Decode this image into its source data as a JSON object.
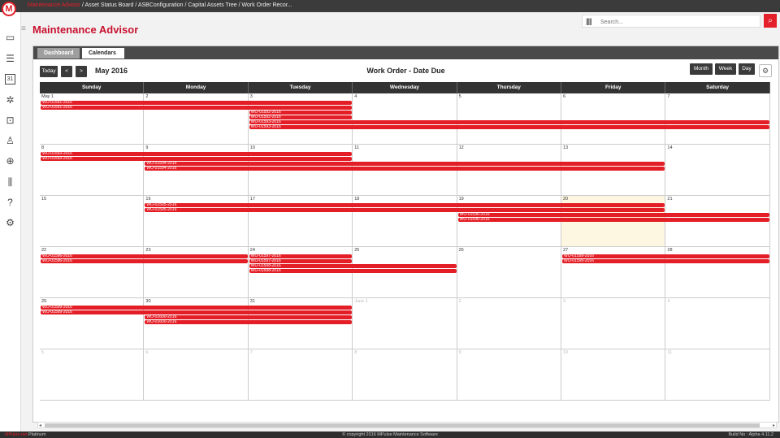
{
  "breadcrumb": {
    "items": [
      "Maintenance Advisor",
      "Asset Status Board",
      "ASBConfiguration",
      "Capital Assets Tree",
      "Work Order Recor..."
    ]
  },
  "app": {
    "title": "Maintenance Advisor",
    "logo_letter": "M"
  },
  "search": {
    "placeholder": "Search..."
  },
  "sidebar": {
    "icons": [
      "monitor-icon",
      "list-icon",
      "calendar-icon",
      "asset-wheel-icon",
      "vehicle-icon",
      "technician-icon",
      "lock-icon",
      "inventory-icon",
      "help-icon",
      "settings-icon"
    ],
    "calendar_day": "31"
  },
  "tabs": [
    {
      "label": "Dashboard",
      "active": false
    },
    {
      "label": "Calendars",
      "active": true
    }
  ],
  "toolbar": {
    "today": "Today",
    "prev": "<",
    "next": ">",
    "month_label": "May 2016",
    "title": "Work Order - Date Due",
    "views": [
      "Month",
      "Week",
      "Day"
    ]
  },
  "calendar": {
    "weekdays": [
      "Sunday",
      "Monday",
      "Tuesday",
      "Wednesday",
      "Thursday",
      "Friday",
      "Saturday"
    ],
    "today_index": 19,
    "days": [
      {
        "n": "May 1"
      },
      {
        "n": "2"
      },
      {
        "n": "3"
      },
      {
        "n": "4"
      },
      {
        "n": "5"
      },
      {
        "n": "6"
      },
      {
        "n": "7"
      },
      {
        "n": "8"
      },
      {
        "n": "9"
      },
      {
        "n": "10"
      },
      {
        "n": "11"
      },
      {
        "n": "12"
      },
      {
        "n": "13"
      },
      {
        "n": "14"
      },
      {
        "n": "15"
      },
      {
        "n": "16"
      },
      {
        "n": "17"
      },
      {
        "n": "18"
      },
      {
        "n": "19"
      },
      {
        "n": "20"
      },
      {
        "n": "21"
      },
      {
        "n": "22"
      },
      {
        "n": "23"
      },
      {
        "n": "24"
      },
      {
        "n": "25"
      },
      {
        "n": "26"
      },
      {
        "n": "27"
      },
      {
        "n": "28"
      },
      {
        "n": "29"
      },
      {
        "n": "30"
      },
      {
        "n": "31"
      },
      {
        "n": "June 1",
        "o": true
      },
      {
        "n": "2",
        "o": true
      },
      {
        "n": "3",
        "o": true
      },
      {
        "n": "4",
        "o": true
      },
      {
        "n": "5",
        "o": true
      },
      {
        "n": "6",
        "o": true
      },
      {
        "n": "7",
        "o": true
      },
      {
        "n": "8",
        "o": true
      },
      {
        "n": "9",
        "o": true
      },
      {
        "n": "10",
        "o": true
      },
      {
        "n": "11",
        "o": true
      }
    ],
    "events": [
      {
        "label": "WO-01591-2016",
        "week": 0,
        "start": 0,
        "end": 2,
        "slot": 0
      },
      {
        "label": "WO-01591-2016",
        "week": 0,
        "start": 0,
        "end": 2,
        "slot": 1
      },
      {
        "label": "WO-01592-2016",
        "week": 0,
        "start": 2,
        "end": 2,
        "slot": 2
      },
      {
        "label": "WO-01592-2016",
        "week": 0,
        "start": 2,
        "end": 2,
        "slot": 3
      },
      {
        "label": "WO-01593-2016",
        "week": 0,
        "start": 2,
        "end": 6,
        "slot": 4
      },
      {
        "label": "WO-01593-2016",
        "week": 0,
        "start": 2,
        "end": 6,
        "slot": 5
      },
      {
        "label": "WO-01593-2016",
        "week": 1,
        "start": 0,
        "end": 2,
        "slot": 0
      },
      {
        "label": "WO-01593-2016",
        "week": 1,
        "start": 0,
        "end": 2,
        "slot": 1
      },
      {
        "label": "WO-01594-2016",
        "week": 1,
        "start": 1,
        "end": 5,
        "slot": 2
      },
      {
        "label": "WO-01594-2016",
        "week": 1,
        "start": 1,
        "end": 5,
        "slot": 3
      },
      {
        "label": "WO-01595-2016",
        "week": 2,
        "start": 1,
        "end": 5,
        "slot": 0
      },
      {
        "label": "WO-01595-2016",
        "week": 2,
        "start": 1,
        "end": 5,
        "slot": 1
      },
      {
        "label": "WO-01596-2016",
        "week": 2,
        "start": 4,
        "end": 6,
        "slot": 2
      },
      {
        "label": "WO-01596-2016",
        "week": 2,
        "start": 4,
        "end": 6,
        "slot": 3
      },
      {
        "label": "WO-01596-2016",
        "week": 3,
        "start": 0,
        "end": 1,
        "slot": 0
      },
      {
        "label": "WO-01596-2016",
        "week": 3,
        "start": 0,
        "end": 1,
        "slot": 1
      },
      {
        "label": "WO-01597-2016",
        "week": 3,
        "start": 2,
        "end": 2,
        "slot": 0
      },
      {
        "label": "WO-01597-2016",
        "week": 3,
        "start": 2,
        "end": 2,
        "slot": 1
      },
      {
        "label": "WO-01598-2016",
        "week": 3,
        "start": 2,
        "end": 3,
        "slot": 2
      },
      {
        "label": "WO-01598-2016",
        "week": 3,
        "start": 2,
        "end": 3,
        "slot": 3
      },
      {
        "label": "WO-01599-2016",
        "week": 3,
        "start": 5,
        "end": 6,
        "slot": 0
      },
      {
        "label": "WO-01599-2016",
        "week": 3,
        "start": 5,
        "end": 6,
        "slot": 1
      },
      {
        "label": "WO-01599-2016",
        "week": 4,
        "start": 0,
        "end": 2,
        "slot": 0
      },
      {
        "label": "WO-01599-2016",
        "week": 4,
        "start": 0,
        "end": 2,
        "slot": 1
      },
      {
        "label": "WO-01600-2016",
        "week": 4,
        "start": 1,
        "end": 2,
        "slot": 2
      },
      {
        "label": "WO-01600-2016",
        "week": 4,
        "start": 1,
        "end": 2,
        "slot": 3
      }
    ]
  },
  "footer": {
    "brand": "MPulse.net",
    "edition": "Platinum",
    "copyright": "© copyright 2016 MPulse Maintenance Software",
    "build": "Build No : Alpha 4.11.2"
  },
  "colors": {
    "accent": "#e4202a",
    "event": "#e41e26",
    "today": "#fdf6e1",
    "header": "#333333"
  }
}
